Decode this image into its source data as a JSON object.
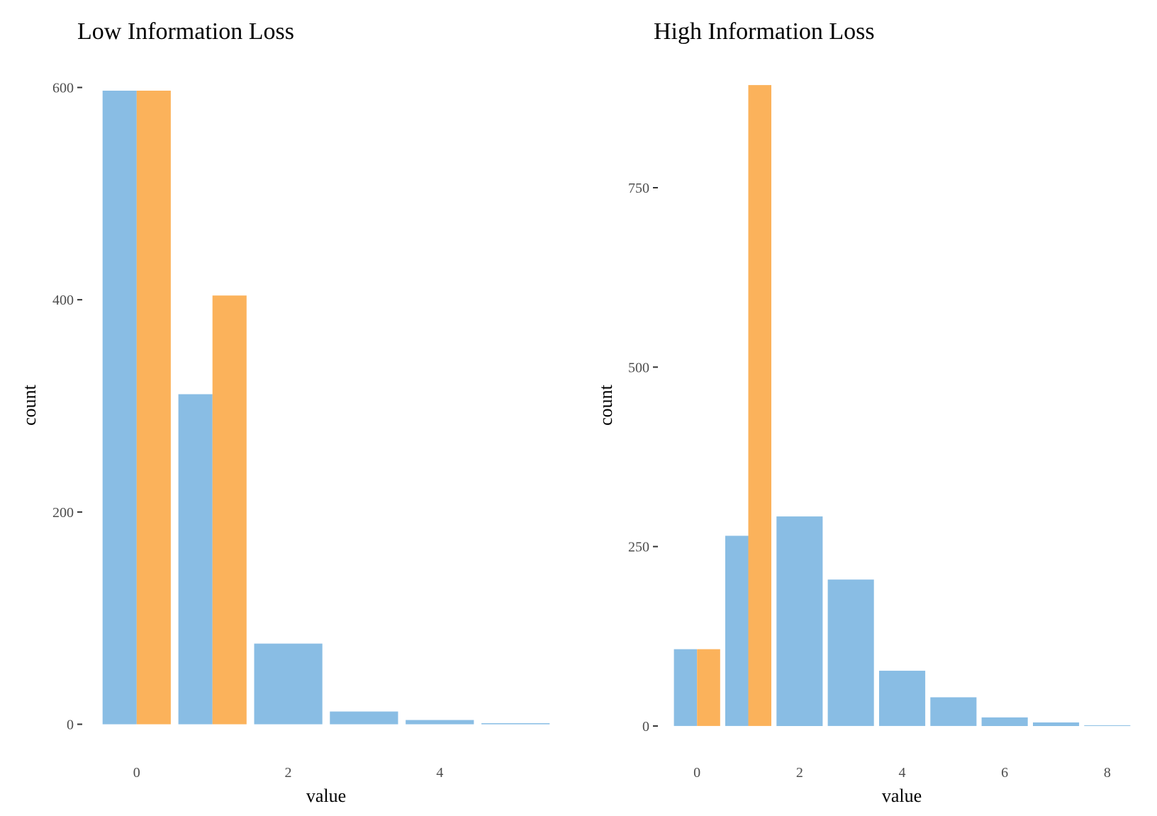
{
  "colors": {
    "blue": "#89bde4",
    "orange": "#fbb25b"
  },
  "chart_data": [
    {
      "type": "bar",
      "title": "Low Information Loss",
      "xlabel": "value",
      "ylabel": "count",
      "xlim": [
        -0.55,
        5.55
      ],
      "ylim": [
        -5,
        607
      ],
      "x_ticks": [
        0,
        2,
        4
      ],
      "y_ticks": [
        0,
        200,
        400,
        600
      ],
      "grid": false,
      "legend": "none",
      "series": [
        {
          "color": "blue",
          "points": [
            {
              "x_start": -0.45,
              "x_end": 0.0,
              "count": 597
            },
            {
              "x_start": 0.55,
              "x_end": 1.0,
              "count": 311
            },
            {
              "x_start": 1.55,
              "x_end": 2.45,
              "count": 76
            },
            {
              "x_start": 2.55,
              "x_end": 3.45,
              "count": 12
            },
            {
              "x_start": 3.55,
              "x_end": 4.45,
              "count": 4
            },
            {
              "x_start": 4.55,
              "x_end": 5.45,
              "count": 1
            }
          ]
        },
        {
          "color": "orange",
          "points": [
            {
              "x_start": 0.0,
              "x_end": 0.45,
              "count": 597
            },
            {
              "x_start": 1.0,
              "x_end": 1.45,
              "count": 404
            }
          ]
        }
      ]
    },
    {
      "type": "bar",
      "title": "High Information Loss",
      "xlabel": "value",
      "ylabel": "count",
      "xlim": [
        -0.5,
        8.5
      ],
      "ylim": [
        -5,
        900
      ],
      "x_ticks": [
        0,
        2,
        4,
        6,
        8
      ],
      "y_ticks": [
        0,
        250,
        500,
        750
      ],
      "grid": false,
      "legend": "none",
      "series": [
        {
          "color": "blue",
          "points": [
            {
              "x_start": -0.45,
              "x_end": 0.0,
              "count": 107
            },
            {
              "x_start": 0.55,
              "x_end": 1.0,
              "count": 265
            },
            {
              "x_start": 1.55,
              "x_end": 2.45,
              "count": 292
            },
            {
              "x_start": 2.55,
              "x_end": 3.45,
              "count": 204
            },
            {
              "x_start": 3.55,
              "x_end": 4.45,
              "count": 77
            },
            {
              "x_start": 4.55,
              "x_end": 5.45,
              "count": 40
            },
            {
              "x_start": 5.55,
              "x_end": 6.45,
              "count": 12
            },
            {
              "x_start": 6.55,
              "x_end": 7.45,
              "count": 5
            },
            {
              "x_start": 7.55,
              "x_end": 8.45,
              "count": 1
            }
          ]
        },
        {
          "color": "orange",
          "points": [
            {
              "x_start": 0.0,
              "x_end": 0.45,
              "count": 107
            },
            {
              "x_start": 1.0,
              "x_end": 1.45,
              "count": 893
            }
          ]
        }
      ]
    }
  ]
}
